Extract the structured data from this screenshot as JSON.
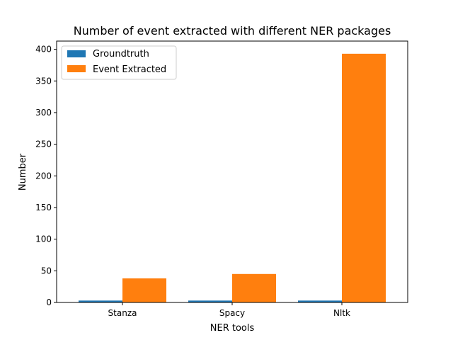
{
  "chart_data": {
    "type": "bar",
    "title": "Number of event extracted with different NER packages",
    "xlabel": "NER tools",
    "ylabel": "Number",
    "categories": [
      "Stanza",
      "Spacy",
      "Nltk"
    ],
    "series": [
      {
        "name": "Groundtruth",
        "values": [
          3,
          3,
          3
        ],
        "color": "#1f77b4"
      },
      {
        "name": "Event Extracted",
        "values": [
          38,
          45,
          393
        ],
        "color": "#ff7f0e"
      }
    ],
    "ylim": [
      0,
      413
    ],
    "yticks": [
      0,
      50,
      100,
      150,
      200,
      250,
      300,
      350,
      400
    ],
    "grid": false,
    "legend": "top-left"
  }
}
